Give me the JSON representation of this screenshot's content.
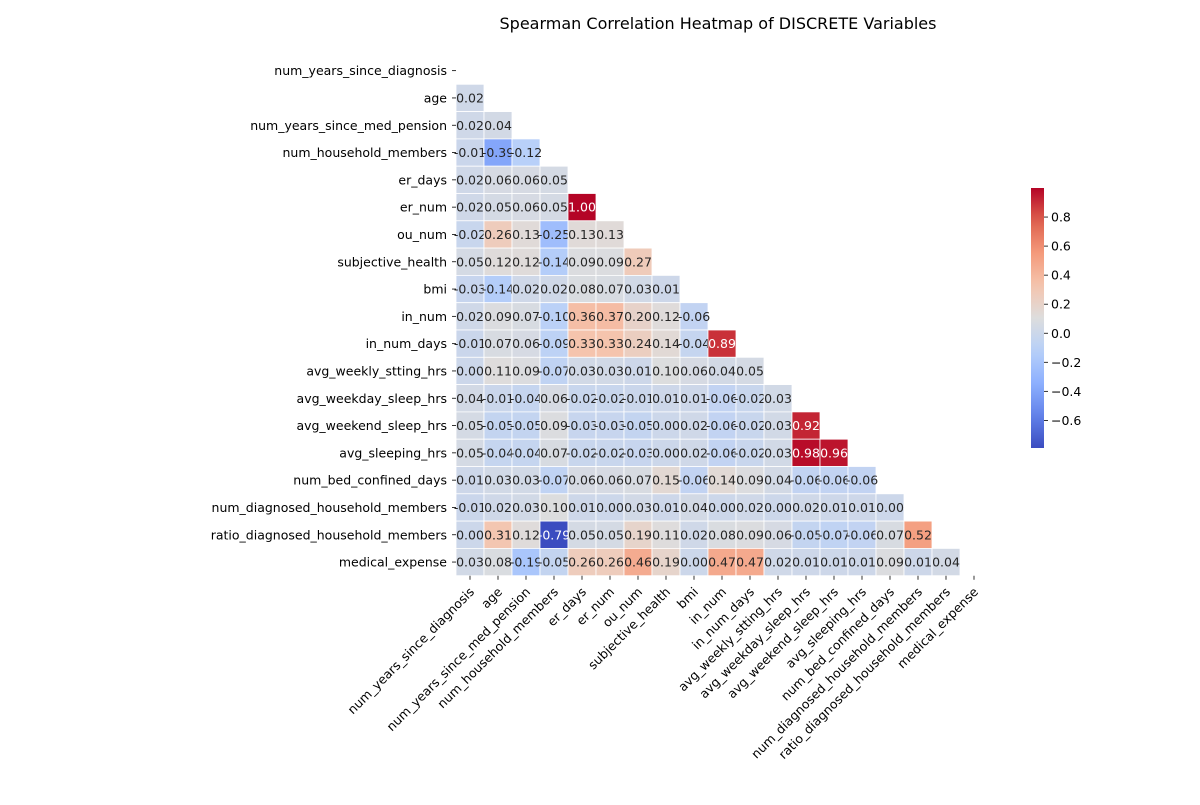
{
  "chart_data": {
    "type": "heatmap",
    "title": "Spearman Correlation Heatmap of DISCRETE Variables",
    "variables": [
      "num_years_since_diagnosis",
      "age",
      "num_years_since_med_pension",
      "num_household_members",
      "er_days",
      "er_num",
      "ou_num",
      "subjective_health",
      "bmi",
      "in_num",
      "in_num_days",
      "avg_weekly_stting_hrs",
      "avg_weekday_sleep_hrs",
      "avg_weekend_sleep_hrs",
      "avg_sleeping_hrs",
      "num_bed_confined_days",
      "num_diagnosed_household_members",
      "ratio_diagnosed_household_members",
      "medical_expense"
    ],
    "values": [
      [],
      [
        0.02
      ],
      [
        0.02,
        0.04
      ],
      [
        -0.01,
        -0.39,
        -0.12
      ],
      [
        0.02,
        0.06,
        0.06,
        0.05
      ],
      [
        0.02,
        0.05,
        0.06,
        0.05,
        1.0
      ],
      [
        -0.02,
        0.26,
        0.13,
        -0.25,
        0.13,
        0.13
      ],
      [
        0.05,
        0.12,
        0.12,
        -0.14,
        0.09,
        0.09,
        0.27
      ],
      [
        -0.03,
        -0.14,
        0.02,
        0.02,
        0.08,
        0.07,
        0.03,
        0.01
      ],
      [
        0.02,
        0.09,
        0.07,
        -0.1,
        0.36,
        0.37,
        0.2,
        0.12,
        -0.06
      ],
      [
        -0.01,
        0.07,
        0.06,
        -0.09,
        0.33,
        0.33,
        0.24,
        0.14,
        -0.04,
        0.89
      ],
      [
        -0.0,
        0.11,
        0.09,
        -0.07,
        0.03,
        0.03,
        0.01,
        0.1,
        0.06,
        0.04,
        0.05
      ],
      [
        0.04,
        -0.01,
        -0.04,
        0.06,
        -0.02,
        -0.02,
        -0.01,
        0.01,
        0.01,
        -0.06,
        -0.02,
        0.03
      ],
      [
        0.05,
        -0.05,
        -0.05,
        0.09,
        -0.03,
        -0.03,
        -0.05,
        0.0,
        0.02,
        -0.06,
        -0.02,
        0.03,
        0.92
      ],
      [
        0.05,
        -0.04,
        -0.04,
        0.07,
        -0.02,
        -0.02,
        -0.03,
        0.0,
        0.02,
        -0.06,
        -0.02,
        0.03,
        0.98,
        0.96
      ],
      [
        0.01,
        0.03,
        0.03,
        -0.07,
        0.06,
        0.06,
        0.07,
        0.15,
        -0.06,
        0.14,
        0.09,
        0.04,
        -0.06,
        -0.06,
        -0.06
      ],
      [
        -0.01,
        0.02,
        0.03,
        0.1,
        0.01,
        0.0,
        0.03,
        0.01,
        0.04,
        0.0,
        0.02,
        0.0,
        0.02,
        0.01,
        0.01,
        0.0
      ],
      [
        -0.0,
        0.31,
        0.12,
        -0.79,
        0.05,
        0.05,
        0.19,
        0.11,
        0.02,
        0.08,
        0.09,
        0.06,
        -0.05,
        -0.07,
        -0.06,
        0.07,
        0.52
      ],
      [
        0.03,
        0.08,
        -0.19,
        -0.05,
        0.26,
        0.26,
        0.46,
        0.19,
        0.0,
        0.47,
        0.47,
        0.02,
        0.01,
        0.01,
        0.01,
        0.09,
        0.01,
        0.04
      ]
    ],
    "colorbar": {
      "colormap": "coolwarm",
      "vmin": -0.79,
      "vmax": 1.0,
      "ticks": [
        -0.6,
        -0.4,
        -0.2,
        0.0,
        0.2,
        0.4,
        0.6,
        0.8
      ],
      "tick_labels": [
        "−0.6",
        "−0.4",
        "−0.2",
        "0.0",
        "0.2",
        "0.4",
        "0.6",
        "0.8"
      ]
    },
    "mask": "upper-triangle",
    "format": "0.00"
  }
}
